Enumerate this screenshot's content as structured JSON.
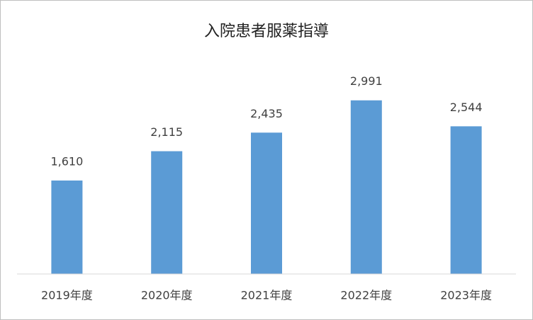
{
  "chart_data": {
    "type": "bar",
    "title": "入院患者服薬指導",
    "categories": [
      "2019年度",
      "2020年度",
      "2021年度",
      "2022年度",
      "2023年度"
    ],
    "values": [
      1610,
      2115,
      2435,
      2991,
      2544
    ],
    "value_labels": [
      "1,610",
      "2,115",
      "2,435",
      "2,991",
      "2,544"
    ],
    "color": "#5b9bd5",
    "ylim": [
      0,
      3500
    ]
  }
}
